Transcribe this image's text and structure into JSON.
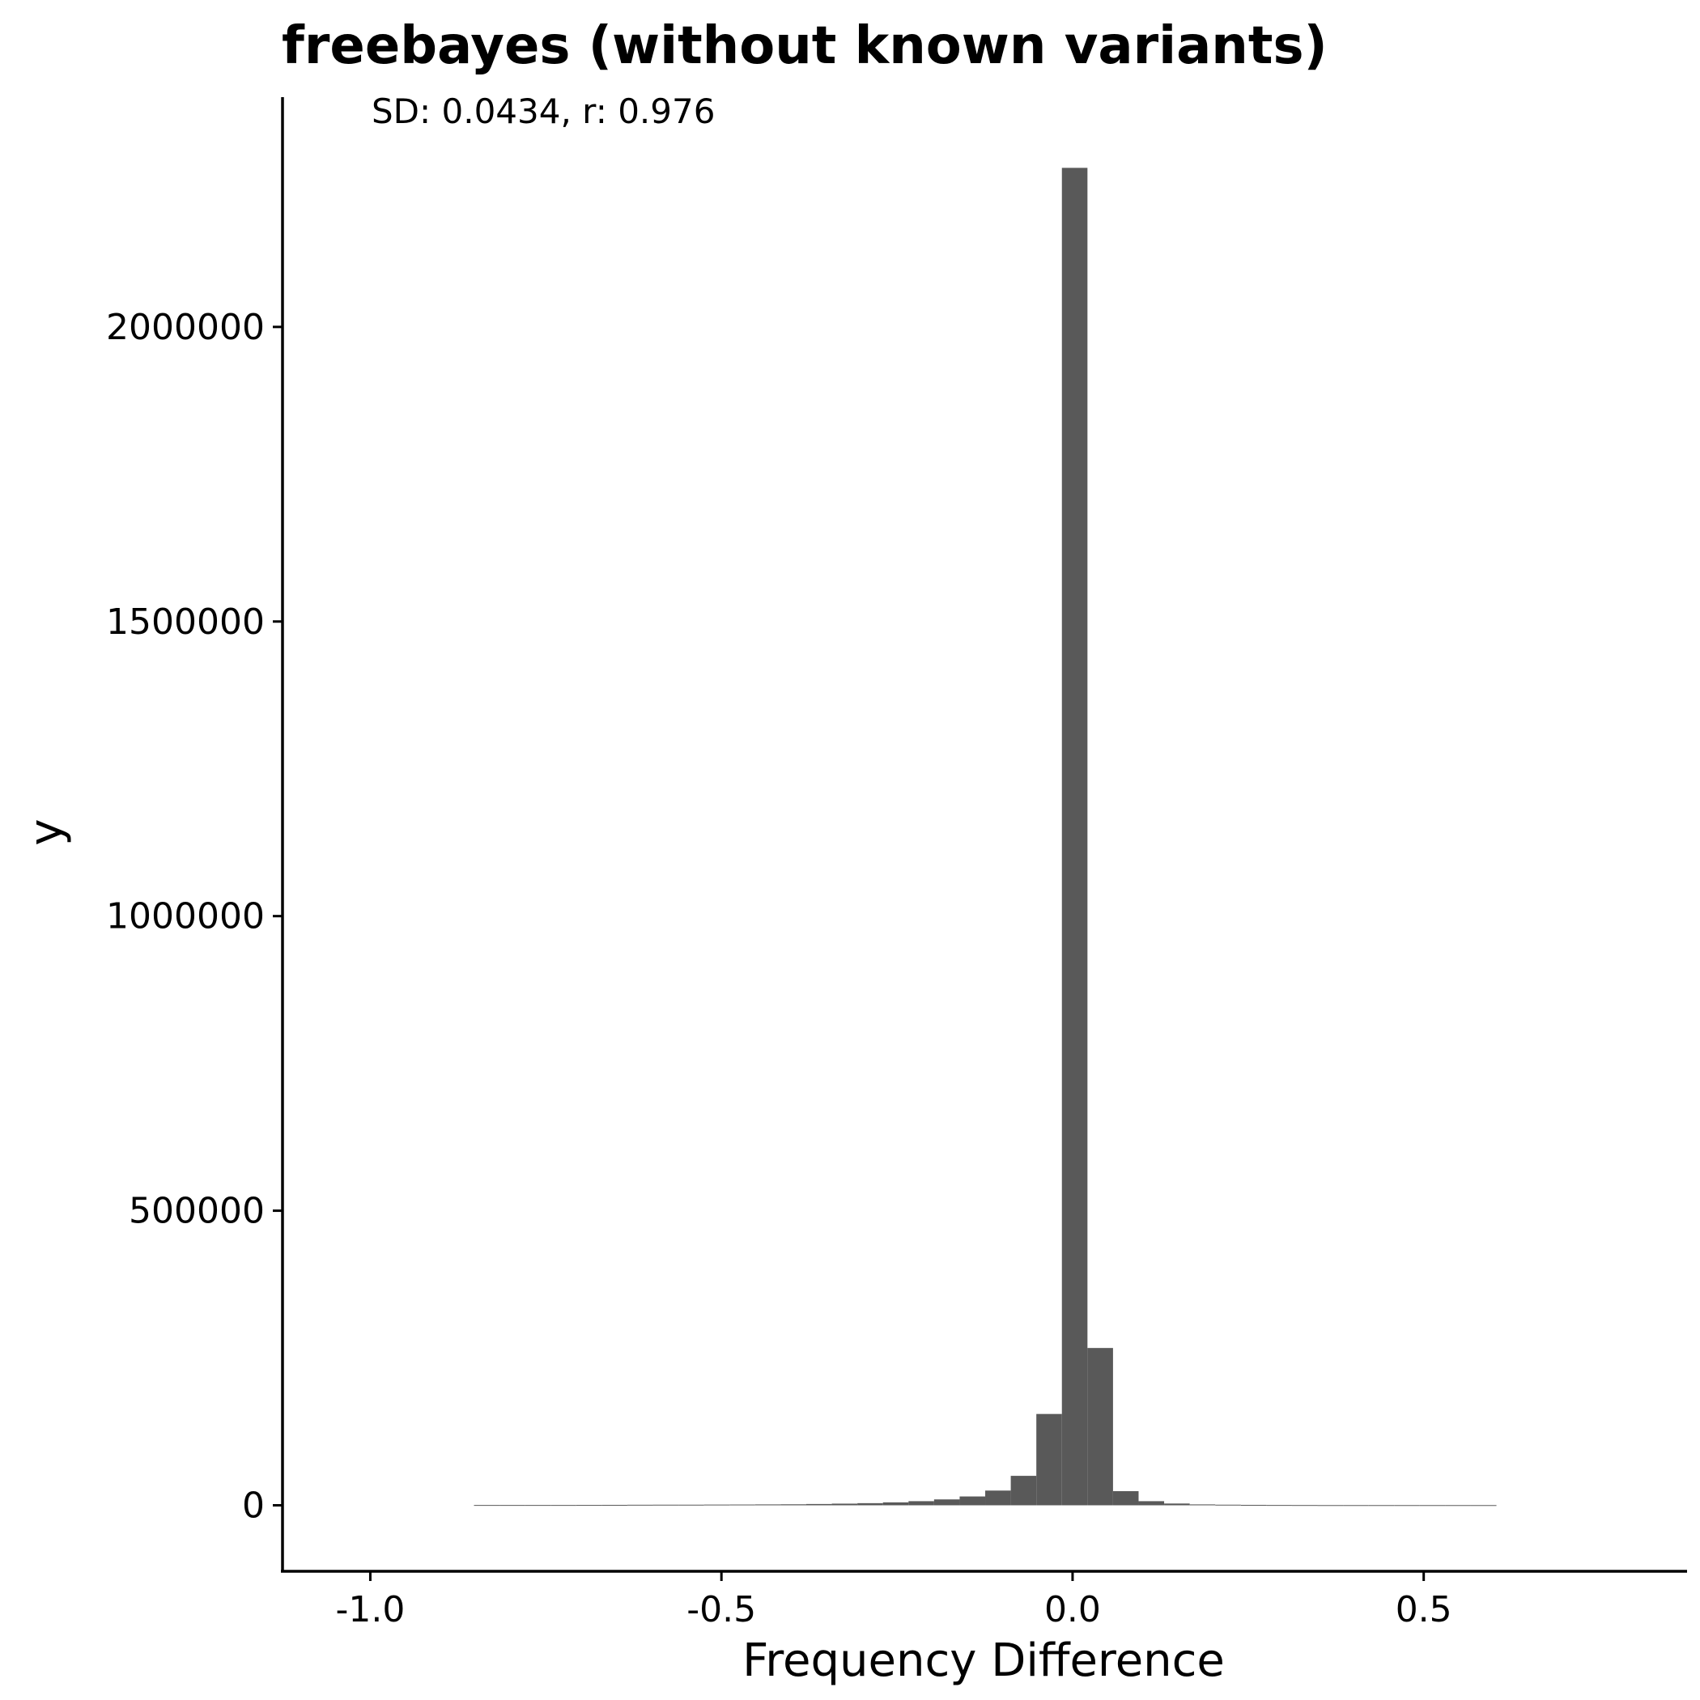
{
  "chart_data": {
    "type": "bar",
    "title": "freebayes (without known variants)",
    "annotation": "SD: 0.0434, r: 0.976",
    "xlabel": "Frequency Difference",
    "ylabel": "y",
    "xlim": [
      -1.125,
      0.875
    ],
    "ylim": [
      -112000,
      2390000
    ],
    "x_ticks": [
      -1.0,
      -0.5,
      0.0,
      0.5
    ],
    "x_tick_labels": [
      "-1.0",
      "-0.5",
      "0.0",
      "0.5"
    ],
    "y_ticks": [
      0,
      500000,
      1000000,
      1500000,
      2000000
    ],
    "y_tick_labels": [
      "0",
      "500000",
      "1000000",
      "1500000",
      "2000000"
    ],
    "grid": false,
    "bar_color": "#595959",
    "bin_width": 0.0364,
    "bins": [
      {
        "x0": -0.8524,
        "x1": -0.816,
        "y": 500
      },
      {
        "x0": -0.816,
        "x1": -0.7796,
        "y": 500
      },
      {
        "x0": -0.7796,
        "x1": -0.7432,
        "y": 500
      },
      {
        "x0": -0.7432,
        "x1": -0.7068,
        "y": 500
      },
      {
        "x0": -0.7068,
        "x1": -0.6704,
        "y": 600
      },
      {
        "x0": -0.6704,
        "x1": -0.634,
        "y": 700
      },
      {
        "x0": -0.634,
        "x1": -0.5976,
        "y": 900
      },
      {
        "x0": -0.5976,
        "x1": -0.5612,
        "y": 1000
      },
      {
        "x0": -0.5612,
        "x1": -0.5248,
        "y": 1000
      },
      {
        "x0": -0.5248,
        "x1": -0.4884,
        "y": 1200
      },
      {
        "x0": -0.4884,
        "x1": -0.452,
        "y": 1300
      },
      {
        "x0": -0.452,
        "x1": -0.4156,
        "y": 1500
      },
      {
        "x0": -0.4156,
        "x1": -0.3792,
        "y": 1700
      },
      {
        "x0": -0.3792,
        "x1": -0.3428,
        "y": 2200
      },
      {
        "x0": -0.3428,
        "x1": -0.3064,
        "y": 2800
      },
      {
        "x0": -0.3064,
        "x1": -0.27,
        "y": 3600
      },
      {
        "x0": -0.27,
        "x1": -0.2336,
        "y": 5000
      },
      {
        "x0": -0.2336,
        "x1": -0.1972,
        "y": 7000
      },
      {
        "x0": -0.1972,
        "x1": -0.1608,
        "y": 10000
      },
      {
        "x0": -0.1608,
        "x1": -0.1244,
        "y": 15000
      },
      {
        "x0": -0.1244,
        "x1": -0.088,
        "y": 25000
      },
      {
        "x0": -0.088,
        "x1": -0.0516,
        "y": 50000
      },
      {
        "x0": -0.0516,
        "x1": -0.0152,
        "y": 155000
      },
      {
        "x0": -0.0152,
        "x1": 0.0212,
        "y": 2270000
      },
      {
        "x0": 0.0212,
        "x1": 0.0576,
        "y": 267000
      },
      {
        "x0": 0.0576,
        "x1": 0.094,
        "y": 24000
      },
      {
        "x0": 0.094,
        "x1": 0.1304,
        "y": 7000
      },
      {
        "x0": 0.1304,
        "x1": 0.1668,
        "y": 3000
      },
      {
        "x0": 0.1668,
        "x1": 0.2032,
        "y": 1500
      },
      {
        "x0": 0.2032,
        "x1": 0.2396,
        "y": 1000
      },
      {
        "x0": 0.2396,
        "x1": 0.276,
        "y": 700
      },
      {
        "x0": 0.276,
        "x1": 0.3124,
        "y": 500
      },
      {
        "x0": 0.3124,
        "x1": 0.3488,
        "y": 400
      },
      {
        "x0": 0.3488,
        "x1": 0.3852,
        "y": 300
      },
      {
        "x0": 0.3852,
        "x1": 0.4216,
        "y": 300
      },
      {
        "x0": 0.4216,
        "x1": 0.458,
        "y": 300
      },
      {
        "x0": 0.458,
        "x1": 0.4944,
        "y": 300
      },
      {
        "x0": 0.4944,
        "x1": 0.5308,
        "y": 300
      },
      {
        "x0": 0.5308,
        "x1": 0.5672,
        "y": 300
      },
      {
        "x0": 0.5672,
        "x1": 0.6036,
        "y": 300
      }
    ]
  }
}
